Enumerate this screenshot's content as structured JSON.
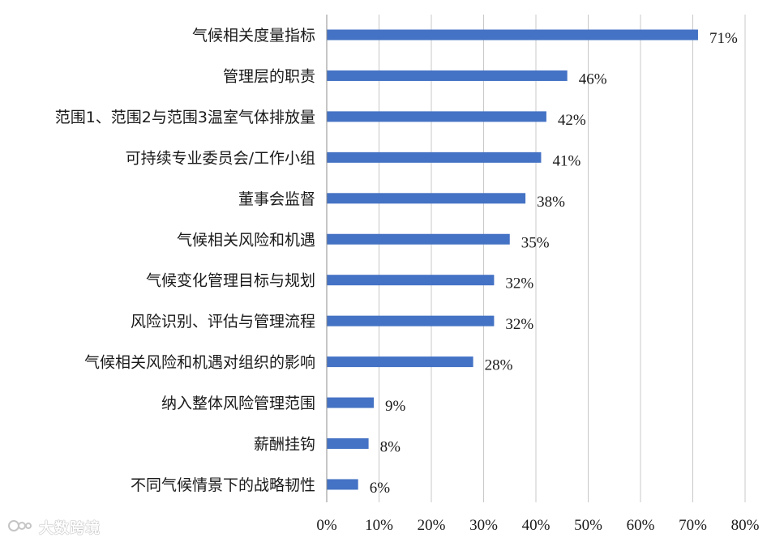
{
  "chart_data": {
    "type": "bar",
    "orientation": "horizontal",
    "categories": [
      "气候相关度量指标",
      "管理层的职责",
      "范围1、范围2与范围3温室气体排放量",
      "可持续专业委员会/工作小组",
      "董事会监督",
      "气候相关风险和机遇",
      "气候变化管理目标与规划",
      "风险识别、评估与管理流程",
      "气候相关风险和机遇对组织的影响",
      "纳入整体风险管理范围",
      "薪酬挂钩",
      "不同气候情景下的战略韧性"
    ],
    "values": [
      71,
      46,
      42,
      41,
      38,
      35,
      32,
      32,
      28,
      9,
      8,
      6
    ],
    "value_labels": [
      "71%",
      "46%",
      "42%",
      "41%",
      "38%",
      "35%",
      "32%",
      "32%",
      "28%",
      "9%",
      "8%",
      "6%"
    ],
    "x_ticks": [
      "0%",
      "10%",
      "20%",
      "30%",
      "40%",
      "50%",
      "60%",
      "70%",
      "80%"
    ],
    "xlim": [
      0,
      80
    ],
    "unit": "%",
    "grid": "vertical",
    "legend": "none",
    "bar_color": "#4472c4",
    "title": "",
    "xlabel": "",
    "ylabel": ""
  },
  "watermark": {
    "text": "大数跨境",
    "icon": "watermark-logo-icon"
  }
}
